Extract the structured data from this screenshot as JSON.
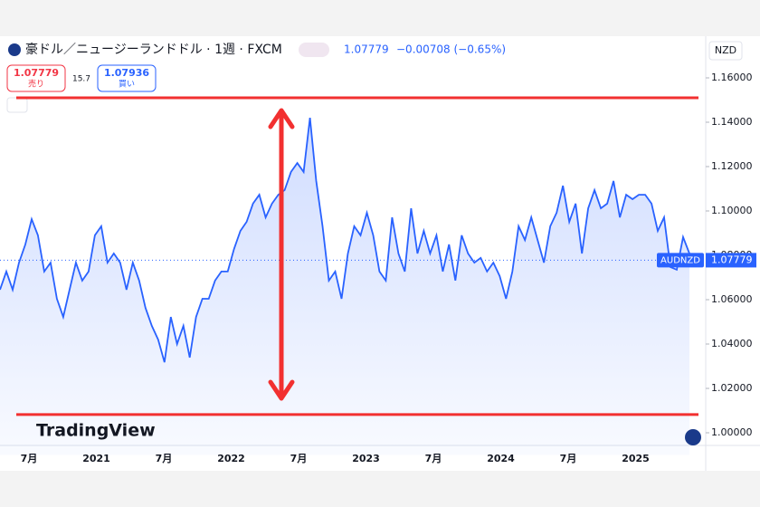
{
  "chart_data": {
    "type": "area",
    "title": "豪ドル／ニュージーランドドル · 1週 · FXCM",
    "price": "1.07779",
    "change": "−0.00708 (−0.65%)",
    "sell_price": "1.07779",
    "sell_label": "売り",
    "spread": "15.7",
    "buy_price": "1.07936",
    "buy_label": "買い",
    "currency": "NZD",
    "symbol": "AUDNZD",
    "last_value": 1.07779,
    "last_label": "1.07779",
    "logo": "TradingView",
    "color": "#2962ff",
    "values": [
      1.0645,
      1.0727,
      1.0645,
      1.0767,
      1.0849,
      1.0963,
      1.089,
      1.0727,
      1.0767,
      1.0604,
      1.0522,
      1.0645,
      1.0767,
      1.0686,
      1.0727,
      1.089,
      1.0931,
      1.0767,
      1.0808,
      1.0767,
      1.0645,
      1.0767,
      1.0686,
      1.0563,
      1.0482,
      1.042,
      1.0318,
      1.0522,
      1.04,
      1.0482,
      1.0339,
      1.0522,
      1.0604,
      1.0604,
      1.0686,
      1.0727,
      1.0727,
      1.0829,
      1.091,
      1.0951,
      1.1033,
      1.1073,
      1.0971,
      1.1033,
      1.1073,
      1.1094,
      1.1176,
      1.1216,
      1.1176,
      1.142,
      1.1135,
      1.0931,
      1.0686,
      1.0727,
      1.0604,
      1.0808,
      1.0931,
      1.089,
      1.0992,
      1.089,
      1.0727,
      1.0686,
      1.0971,
      1.0808,
      1.0727,
      1.1012,
      1.0808,
      1.091,
      1.0808,
      1.089,
      1.0727,
      1.0849,
      1.0686,
      1.089,
      1.0808,
      1.0767,
      1.0788,
      1.0727,
      1.0767,
      1.0706,
      1.0604,
      1.0727,
      1.0931,
      1.0869,
      1.0971,
      1.0869,
      1.0767,
      1.0931,
      1.0992,
      1.1114,
      1.0951,
      1.1033,
      1.0808,
      1.1012,
      1.1094,
      1.1012,
      1.1033,
      1.1135,
      1.0971,
      1.1073,
      1.1053,
      1.1073,
      1.1073,
      1.1033,
      1.091,
      1.0971,
      1.0747,
      1.0735,
      1.0882,
      1.0808
    ],
    "ylim": [
      0.99,
      1.17
    ],
    "yticks": [
      {
        "value": 1.0,
        "label": "1.00000"
      },
      {
        "value": 1.02,
        "label": "1.02000"
      },
      {
        "value": 1.04,
        "label": "1.04000"
      },
      {
        "value": 1.06,
        "label": "1.06000"
      },
      {
        "value": 1.08,
        "label": "1.08000"
      },
      {
        "value": 1.1,
        "label": "1.10000"
      },
      {
        "value": 1.12,
        "label": "1.12000"
      },
      {
        "value": 1.14,
        "label": "1.14000"
      },
      {
        "value": 1.16,
        "label": "1.16000"
      }
    ],
    "xticks": [
      "7月",
      "2021",
      "7月",
      "2022",
      "7月",
      "2023",
      "7月",
      "2024",
      "7月",
      "2025"
    ],
    "hlines": [
      1.151,
      1.0082
    ],
    "arrow": [
      1.1453,
      1.0155
    ]
  }
}
